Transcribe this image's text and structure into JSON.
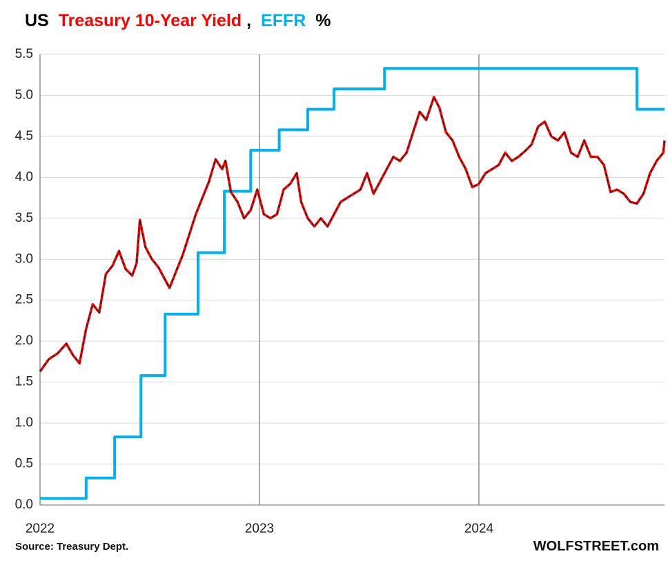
{
  "chart_data": {
    "type": "line",
    "title_parts": [
      "US",
      ",",
      "%"
    ],
    "title_color": "#000000",
    "source": "Source: Treasury Dept.",
    "brand": "WOLFSTREET.com",
    "xlim": [
      2022,
      2024.846
    ],
    "xticks": [
      2022,
      2023,
      2024
    ],
    "ylim": [
      0,
      5.5
    ],
    "yticks": [
      {
        "value": 0,
        "label": "0.0"
      },
      0.5,
      {
        "value": 1,
        "label": "1.0"
      },
      1.5,
      {
        "value": 2,
        "label": "2.0"
      },
      2.5,
      {
        "value": 3,
        "label": "3.0"
      },
      3.5,
      {
        "value": 4,
        "label": "4.0"
      },
      4.5,
      {
        "value": 5,
        "label": "5.0"
      },
      5.5
    ],
    "grid": true,
    "series": [
      {
        "name": "Treasury 10-Year Yield",
        "color": "#ff0000",
        "dash_color": "#222222",
        "x": [
          2022.0,
          2022.04,
          2022.08,
          2022.12,
          2022.15,
          2022.18,
          2022.21,
          2022.24,
          2022.27,
          2022.3,
          2022.33,
          2022.36,
          2022.39,
          2022.42,
          2022.44,
          2022.455,
          2022.48,
          2022.51,
          2022.54,
          2022.57,
          2022.59,
          2022.62,
          2022.65,
          2022.68,
          2022.71,
          2022.74,
          2022.77,
          2022.8,
          2022.83,
          2022.845,
          2022.87,
          2022.9,
          2022.93,
          2022.96,
          2022.99,
          2023.02,
          2023.05,
          2023.08,
          2023.11,
          2023.14,
          2023.17,
          2023.19,
          2023.22,
          2023.25,
          2023.28,
          2023.31,
          2023.34,
          2023.37,
          2023.4,
          2023.43,
          2023.46,
          2023.49,
          2023.52,
          2023.55,
          2023.58,
          2023.61,
          2023.64,
          2023.67,
          2023.7,
          2023.73,
          2023.76,
          2023.795,
          2023.82,
          2023.85,
          2023.88,
          2023.91,
          2023.94,
          2023.97,
          2024.0,
          2024.03,
          2024.06,
          2024.09,
          2024.12,
          2024.15,
          2024.18,
          2024.21,
          2024.24,
          2024.27,
          2024.3,
          2024.33,
          2024.36,
          2024.39,
          2024.42,
          2024.45,
          2024.48,
          2024.51,
          2024.54,
          2024.57,
          2024.6,
          2024.63,
          2024.66,
          2024.69,
          2024.72,
          2024.75,
          2024.78,
          2024.81,
          2024.84,
          2024.846
        ],
        "values": [
          1.63,
          1.78,
          1.85,
          1.97,
          1.83,
          1.73,
          2.15,
          2.45,
          2.35,
          2.82,
          2.92,
          3.1,
          2.88,
          2.8,
          2.95,
          3.48,
          3.15,
          3.0,
          2.9,
          2.75,
          2.65,
          2.85,
          3.05,
          3.3,
          3.55,
          3.75,
          3.95,
          4.22,
          4.1,
          4.2,
          3.82,
          3.7,
          3.5,
          3.6,
          3.85,
          3.55,
          3.5,
          3.55,
          3.85,
          3.92,
          4.05,
          3.7,
          3.5,
          3.4,
          3.5,
          3.4,
          3.55,
          3.7,
          3.75,
          3.8,
          3.85,
          4.05,
          3.8,
          3.95,
          4.1,
          4.25,
          4.2,
          4.3,
          4.55,
          4.8,
          4.7,
          4.98,
          4.85,
          4.55,
          4.45,
          4.25,
          4.1,
          3.88,
          3.92,
          4.05,
          4.1,
          4.15,
          4.3,
          4.2,
          4.25,
          4.32,
          4.4,
          4.62,
          4.68,
          4.5,
          4.45,
          4.55,
          4.3,
          4.25,
          4.45,
          4.25,
          4.25,
          4.15,
          3.82,
          3.85,
          3.8,
          3.7,
          3.68,
          3.8,
          4.05,
          4.2,
          4.3,
          4.45
        ]
      },
      {
        "name": "EFFR",
        "color": "#00b0f0",
        "x": [
          2022.0,
          2022.21,
          2022.21,
          2022.34,
          2022.34,
          2022.46,
          2022.46,
          2022.57,
          2022.57,
          2022.72,
          2022.72,
          2022.84,
          2022.84,
          2022.96,
          2022.96,
          2023.09,
          2023.09,
          2023.22,
          2023.22,
          2023.34,
          2023.34,
          2023.57,
          2023.57,
          2024.72,
          2024.72,
          2024.846
        ],
        "values": [
          0.08,
          0.08,
          0.33,
          0.33,
          0.83,
          0.83,
          1.58,
          1.58,
          2.33,
          2.33,
          3.08,
          3.08,
          3.83,
          3.83,
          4.33,
          4.33,
          4.58,
          4.58,
          4.83,
          4.83,
          5.08,
          5.08,
          5.33,
          5.33,
          4.83,
          4.83
        ]
      }
    ]
  }
}
